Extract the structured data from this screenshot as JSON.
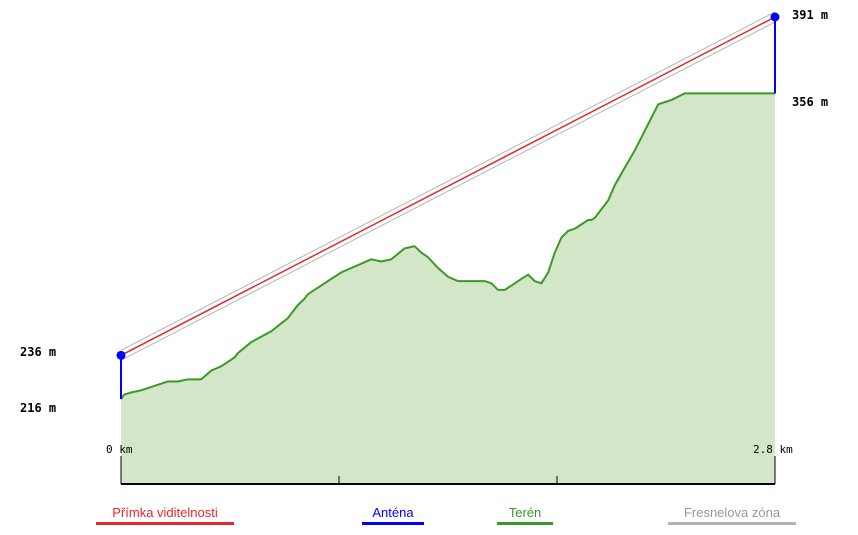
{
  "chart_data": {
    "type": "area",
    "xlabel": "",
    "ylabel": "",
    "x_unit": "km",
    "xlim": [
      0,
      2.8
    ],
    "x_tick_labels": [
      "0 km",
      "2.8 km"
    ],
    "ylim": [
      140,
      392
    ],
    "terrain": {
      "x": [
        0.0,
        0.014,
        0.043,
        0.086,
        0.143,
        0.2,
        0.243,
        0.286,
        0.343,
        0.386,
        0.429,
        0.486,
        0.5,
        0.557,
        0.643,
        0.714,
        0.757,
        0.786,
        0.8,
        0.843,
        0.9,
        0.943,
        0.986,
        1.029,
        1.071,
        1.114,
        1.157,
        1.214,
        1.257,
        1.286,
        1.314,
        1.357,
        1.4,
        1.443,
        1.486,
        1.514,
        1.557,
        1.586,
        1.614,
        1.643,
        1.686,
        1.714,
        1.743,
        1.771,
        1.8,
        1.829,
        1.857,
        1.886,
        1.914,
        1.943,
        1.971,
        2.0,
        2.014,
        2.029,
        2.057,
        2.086,
        2.114,
        2.157,
        2.2,
        2.229,
        2.257,
        2.3,
        2.357,
        2.414,
        2.471,
        2.514,
        2.529,
        2.557,
        2.586,
        2.614,
        2.657,
        2.686,
        2.714,
        2.743,
        2.771,
        2.8
      ],
      "y": [
        216,
        218,
        219,
        220,
        222,
        224,
        224,
        225,
        225,
        229,
        231,
        235,
        237,
        242,
        247,
        253,
        259,
        262,
        264,
        267,
        271,
        274,
        276,
        278,
        280,
        279,
        280,
        285,
        286,
        283,
        281,
        276,
        272,
        270,
        270,
        270,
        270,
        269,
        266,
        266,
        269,
        271,
        273,
        270,
        269,
        274,
        283,
        290,
        293,
        294,
        296,
        298,
        298,
        299,
        303,
        307,
        314,
        322,
        330,
        336,
        342,
        351,
        353,
        356,
        356,
        356,
        356,
        356,
        356,
        356,
        356,
        356,
        356,
        356,
        356,
        356
      ]
    },
    "line_of_sight": {
      "x": [
        0,
        2.8
      ],
      "y": [
        236,
        391
      ]
    },
    "antennas": [
      {
        "x": 0,
        "ground": 216,
        "top": 236
      },
      {
        "x": 2.8,
        "ground": 356,
        "top": 391
      }
    ],
    "elevation_labels": [
      "236 m",
      "216 m",
      "391 m",
      "356 m"
    ],
    "colors": {
      "terrain_line": "#3a9a28",
      "terrain_fill": "#d3e6c8",
      "line_of_sight": "#e5292b",
      "antenna": "#0000ff",
      "fresnel": "#b4b4b4",
      "axis": "#000000"
    },
    "legend": [
      {
        "label": "Přímka viditelnosti",
        "color": "#e5292b",
        "text_color": "#e5292b"
      },
      {
        "label": "Anténa",
        "color": "#0000ff",
        "text_color": "#0000ff"
      },
      {
        "label": "Terén",
        "color": "#3a9a28",
        "text_color": "#3a9a28"
      },
      {
        "label": "Fresnelova zóna",
        "color": "#b4b4b4",
        "text_color": "#999999"
      }
    ]
  }
}
